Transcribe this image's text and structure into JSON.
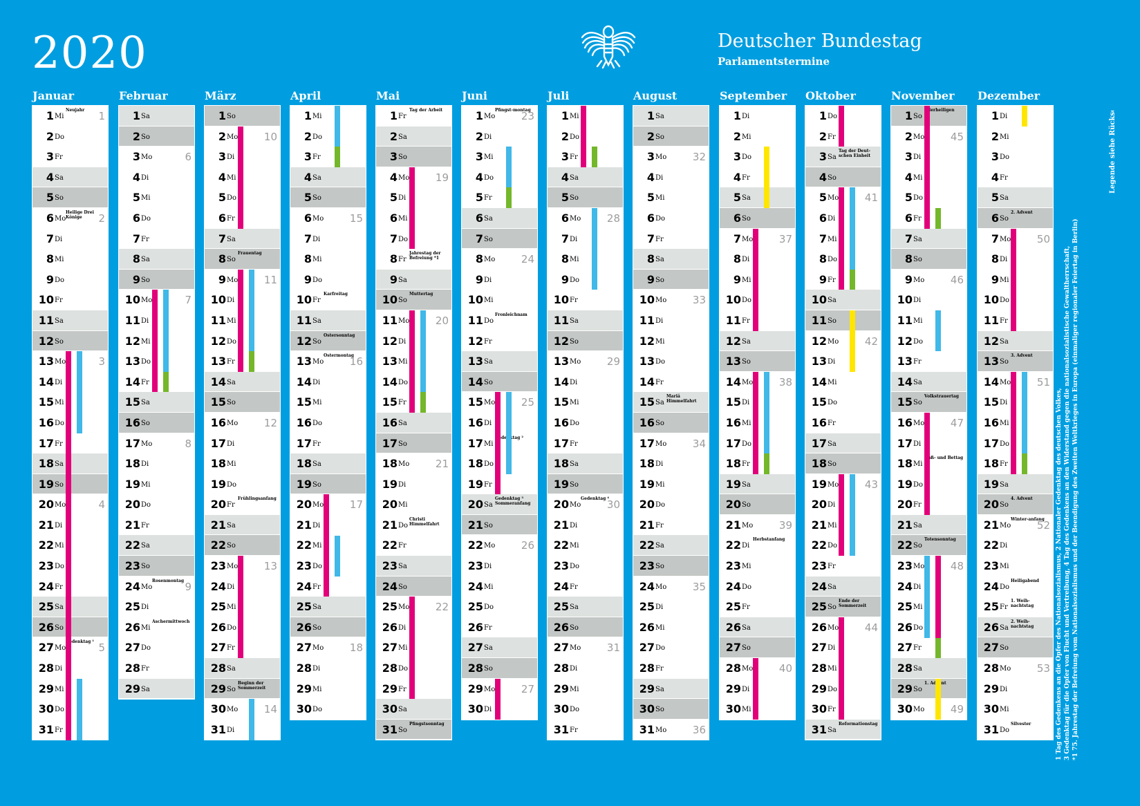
{
  "header": {
    "year": "2020",
    "title": "Deutscher Bundestag",
    "subtitle": "Parlamentstermine"
  },
  "colors": {
    "background": "#009ee0",
    "sitting_week": "#e2007a",
    "committee_week": "#40b8e8",
    "other_week": "#74b72b",
    "holiday_week": "#ffe600"
  },
  "legend_side": {
    "top": "Legende siehe Rückseite",
    "lines": [
      "1 Tag des Gedenkens an die Opfer des Nationalsozialismus, 2 Nationaler Gedenktag des deutschen Volkes,",
      "3 Gedenktag für die Opfer von Flucht und Vertreibung, 4 Tag des Gedenkens an den Widerstand gegen die nationalsozialistische Gewaltherrschaft,",
      "*1 75. Jahrestag der Befreiung vom Nationalsozialismus und der Beendigung des Zweiten Weltkrieges in Europa (einmaliger regionaler Feiertag in Berlin)"
    ]
  },
  "months": [
    {
      "name": "Januar",
      "first_wd": 2,
      "length": 31,
      "notes": {
        "1": "Neujahr",
        "6": "Heilige Drei Könige",
        "27": "Gedenktag ¹"
      },
      "weeks": {
        "1": "1",
        "6": "2",
        "13": "3",
        "20": "4",
        "27": "5"
      }
    },
    {
      "name": "Februar",
      "first_wd": 5,
      "length": 29,
      "notes": {
        "24": "Rosenmontag",
        "26": "Aschermittwoch"
      },
      "weeks": {
        "3": "6",
        "10": "7",
        "17": "8",
        "24": "9"
      }
    },
    {
      "name": "März",
      "first_wd": 6,
      "length": 31,
      "notes": {
        "8": "Frauentag",
        "20": "Frühlingsanfang",
        "29": "Beginn der Sommerzeit"
      },
      "weeks": {
        "2": "10",
        "9": "11",
        "16": "12",
        "23": "13",
        "30": "14"
      }
    },
    {
      "name": "April",
      "first_wd": 2,
      "length": 30,
      "notes": {
        "10": "Karfreitag",
        "12": "Ostersonntag",
        "13": "Ostermontag"
      },
      "weeks": {
        "6": "15",
        "13": "16",
        "20": "17",
        "27": "18"
      }
    },
    {
      "name": "Mai",
      "first_wd": 4,
      "length": 31,
      "notes": {
        "1": "Tag der Arbeit",
        "8": "Jahrestag der Befreiung *1",
        "10": "Muttertag",
        "21": "Christi Himmelfahrt",
        "31": "Pfingstsonntag"
      },
      "weeks": {
        "4": "19",
        "11": "20",
        "18": "21",
        "25": "22"
      }
    },
    {
      "name": "Juni",
      "first_wd": 0,
      "length": 30,
      "notes": {
        "1": "Pfingst-montag",
        "11": "Fronleichnam",
        "17": "Gedenktag ²",
        "20": "Gedenktag ³ Sommeranfang"
      },
      "weeks": {
        "1": "23",
        "8": "24",
        "15": "25",
        "22": "26",
        "29": "27"
      }
    },
    {
      "name": "Juli",
      "first_wd": 2,
      "length": 31,
      "notes": {
        "20": "Gedenktag ⁴"
      },
      "weeks": {
        "6": "28",
        "13": "29",
        "20": "30",
        "27": "31"
      }
    },
    {
      "name": "August",
      "first_wd": 5,
      "length": 31,
      "notes": {
        "15": "Mariä Himmelfahrt"
      },
      "weeks": {
        "3": "32",
        "10": "33",
        "17": "34",
        "24": "35",
        "31": "36"
      }
    },
    {
      "name": "September",
      "first_wd": 1,
      "length": 30,
      "notes": {
        "22": "Herbstanfang"
      },
      "weeks": {
        "7": "37",
        "14": "38",
        "21": "39",
        "28": "40"
      }
    },
    {
      "name": "Oktober",
      "first_wd": 3,
      "length": 31,
      "notes": {
        "3": "Tag der Deut-schen Einheit",
        "25": "Ende der Sommerzeit",
        "31": "Reformationstag"
      },
      "weeks": {
        "5": "41",
        "12": "42",
        "19": "43",
        "26": "44"
      }
    },
    {
      "name": "November",
      "first_wd": 6,
      "length": 30,
      "notes": {
        "1": "Allerheiligen",
        "15": "Volkstrauertag",
        "18": "Buß- und Bettag",
        "22": "Totensonntag",
        "29": "1. Advent"
      },
      "weeks": {
        "2": "45",
        "9": "46",
        "16": "47",
        "23": "48",
        "30": "49"
      }
    },
    {
      "name": "Dezember",
      "first_wd": 1,
      "length": 31,
      "notes": {
        "6": "2. Advent",
        "13": "3. Advent",
        "20": "4. Advent",
        "21": "Winter-anfang",
        "24": "Heiligabend",
        "25": "1. Weih-nachtstag",
        "26": "2. Weih-nachtstag",
        "31": "Silvester"
      },
      "weeks": {
        "7": "50",
        "14": "51",
        "21": "52",
        "28": "53"
      }
    }
  ],
  "weekday_abbr": [
    "Mo",
    "Di",
    "Mi",
    "Do",
    "Fr",
    "Sa",
    "So"
  ],
  "bars": [
    {
      "m": 0,
      "c": "p",
      "from": 13,
      "to": 31,
      "lane": 0
    },
    {
      "m": 0,
      "c": "b",
      "from": 13,
      "to": 16,
      "lane": 1
    },
    {
      "m": 0,
      "c": "b",
      "from": 29,
      "to": 31,
      "lane": 1
    },
    {
      "m": 1,
      "c": "p",
      "from": 10,
      "to": 14,
      "lane": 0
    },
    {
      "m": 1,
      "c": "b",
      "from": 10,
      "to": 13,
      "lane": 1
    },
    {
      "m": 1,
      "c": "g",
      "from": 14,
      "to": 14,
      "lane": 1
    },
    {
      "m": 2,
      "c": "p",
      "from": 2,
      "to": 6,
      "lane": 0
    },
    {
      "m": 2,
      "c": "p",
      "from": 9,
      "to": 13,
      "lane": 0
    },
    {
      "m": 2,
      "c": "b",
      "from": 9,
      "to": 12,
      "lane": 1
    },
    {
      "m": 2,
      "c": "g",
      "from": 13,
      "to": 13,
      "lane": 1
    },
    {
      "m": 2,
      "c": "p",
      "from": 23,
      "to": 27,
      "lane": 0
    },
    {
      "m": 2,
      "c": "b",
      "from": 30,
      "to": 31,
      "lane": 1
    },
    {
      "m": 3,
      "c": "b",
      "from": 1,
      "to": 2,
      "lane": 1
    },
    {
      "m": 3,
      "c": "g",
      "from": 3,
      "to": 3,
      "lane": 1
    },
    {
      "m": 3,
      "c": "p",
      "from": 20,
      "to": 24,
      "lane": 0
    },
    {
      "m": 3,
      "c": "b",
      "from": 22,
      "to": 23,
      "lane": 1
    },
    {
      "m": 4,
      "c": "p",
      "from": 4,
      "to": 7,
      "lane": 0
    },
    {
      "m": 4,
      "c": "p",
      "from": 11,
      "to": 15,
      "lane": 0
    },
    {
      "m": 4,
      "c": "b",
      "from": 11,
      "to": 14,
      "lane": 1
    },
    {
      "m": 4,
      "c": "g",
      "from": 15,
      "to": 15,
      "lane": 1
    },
    {
      "m": 4,
      "c": "p",
      "from": 25,
      "to": 29,
      "lane": 0
    },
    {
      "m": 5,
      "c": "b",
      "from": 3,
      "to": 4,
      "lane": 1
    },
    {
      "m": 5,
      "c": "g",
      "from": 5,
      "to": 5,
      "lane": 1
    },
    {
      "m": 5,
      "c": "p",
      "from": 15,
      "to": 19,
      "lane": 0
    },
    {
      "m": 5,
      "c": "b",
      "from": 15,
      "to": 18,
      "lane": 1
    },
    {
      "m": 5,
      "c": "p",
      "from": 29,
      "to": 30,
      "lane": 0
    },
    {
      "m": 6,
      "c": "p",
      "from": 1,
      "to": 3,
      "lane": 0
    },
    {
      "m": 6,
      "c": "g",
      "from": 3,
      "to": 3,
      "lane": 1
    },
    {
      "m": 6,
      "c": "b",
      "from": 6,
      "to": 9,
      "lane": 1
    },
    {
      "m": 8,
      "c": "y",
      "from": 3,
      "to": 5,
      "lane": 1
    },
    {
      "m": 8,
      "c": "p",
      "from": 7,
      "to": 11,
      "lane": 0
    },
    {
      "m": 8,
      "c": "p",
      "from": 14,
      "to": 18,
      "lane": 0
    },
    {
      "m": 8,
      "c": "b",
      "from": 14,
      "to": 17,
      "lane": 1
    },
    {
      "m": 8,
      "c": "g",
      "from": 18,
      "to": 18,
      "lane": 1
    },
    {
      "m": 8,
      "c": "p",
      "from": 28,
      "to": 30,
      "lane": 0
    },
    {
      "m": 9,
      "c": "p",
      "from": 1,
      "to": 2,
      "lane": 0
    },
    {
      "m": 9,
      "c": "p",
      "from": 5,
      "to": 9,
      "lane": 0
    },
    {
      "m": 9,
      "c": "b",
      "from": 5,
      "to": 8,
      "lane": 1
    },
    {
      "m": 9,
      "c": "g",
      "from": 9,
      "to": 9,
      "lane": 1
    },
    {
      "m": 9,
      "c": "y",
      "from": 11,
      "to": 13,
      "lane": 1
    },
    {
      "m": 9,
      "c": "p",
      "from": 19,
      "to": 22,
      "lane": 0
    },
    {
      "m": 9,
      "c": "b",
      "from": 19,
      "to": 22,
      "lane": 1
    },
    {
      "m": 9,
      "c": "p",
      "from": 26,
      "to": 30,
      "lane": 0
    },
    {
      "m": 10,
      "c": "p",
      "from": 1,
      "to": 6,
      "lane": 0
    },
    {
      "m": 10,
      "c": "g",
      "from": 6,
      "to": 6,
      "lane": 1
    },
    {
      "m": 10,
      "c": "b",
      "from": 11,
      "to": 12,
      "lane": 1
    },
    {
      "m": 10,
      "c": "p",
      "from": 16,
      "to": 20,
      "lane": 0
    },
    {
      "m": 10,
      "c": "b",
      "from": 23,
      "to": 26,
      "lane": 0
    },
    {
      "m": 10,
      "c": "p",
      "from": 23,
      "to": 27,
      "lane": 1
    },
    {
      "m": 10,
      "c": "g",
      "from": 27,
      "to": 27,
      "lane": 1
    },
    {
      "m": 10,
      "c": "y",
      "from": 29,
      "to": 30,
      "lane": 1
    },
    {
      "m": 11,
      "c": "y",
      "from": 1,
      "to": 1,
      "lane": 1
    },
    {
      "m": 11,
      "c": "p",
      "from": 7,
      "to": 11,
      "lane": 0
    },
    {
      "m": 11,
      "c": "p",
      "from": 14,
      "to": 18,
      "lane": 0
    },
    {
      "m": 11,
      "c": "b",
      "from": 14,
      "to": 17,
      "lane": 1
    },
    {
      "m": 11,
      "c": "g",
      "from": 18,
      "to": 18,
      "lane": 1
    }
  ]
}
